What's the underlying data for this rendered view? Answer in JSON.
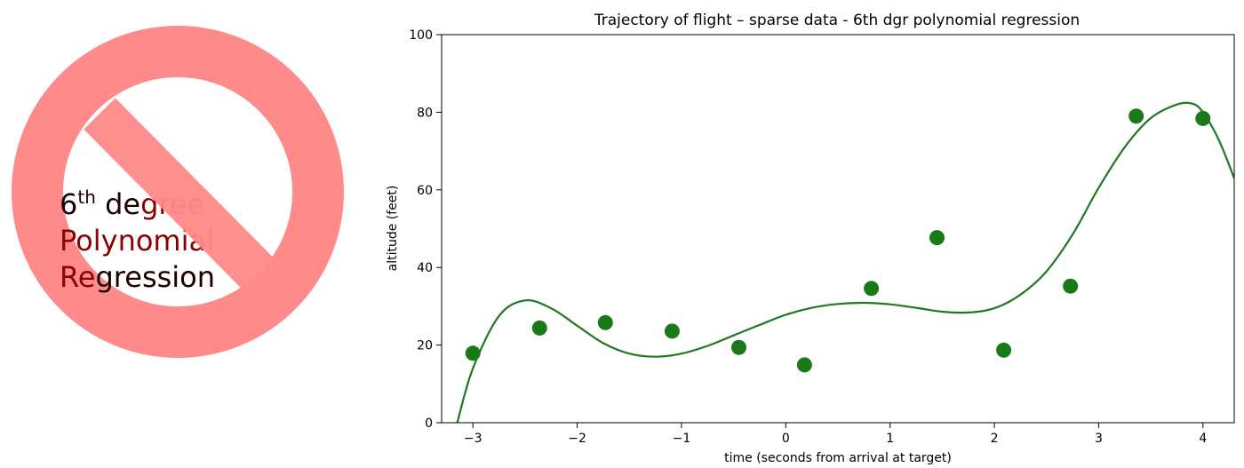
{
  "badge": {
    "icon": "prohibition-sign-icon",
    "ring_color": "#ff8a8a",
    "line1_main": "6",
    "line1_sup": "th",
    "line1_rest_a": " de",
    "line1_rest_b": "gree",
    "line2_a": "Pol",
    "line2_b": "ynomial",
    "line3_a": "Re",
    "line3_b": "gression",
    "text_dark": "#1a0000",
    "text_red": "#8b0000"
  },
  "chart_data": {
    "type": "scatter",
    "title": "Trajectory of flight  –  sparse data -  6th dgr polynomial regression",
    "xlabel": "time (seconds from arrival at target)",
    "ylabel": "altitude (feet)",
    "xlim": [
      -3.3,
      4.3
    ],
    "ylim": [
      0,
      100
    ],
    "xticks": [
      -3,
      -2,
      -1,
      0,
      1,
      2,
      3,
      4
    ],
    "xtick_labels": [
      "−3",
      "−2",
      "−1",
      "0",
      "1",
      "2",
      "3",
      "4"
    ],
    "yticks": [
      0,
      20,
      40,
      60,
      80,
      100
    ],
    "ytick_labels": [
      "0",
      "20",
      "40",
      "60",
      "80",
      "100"
    ],
    "grid": false,
    "colors": {
      "points": "#1a7a1a",
      "curve": "#217821"
    },
    "points": {
      "x": [
        -3.0,
        -2.36,
        -1.73,
        -1.09,
        -0.45,
        0.18,
        0.82,
        1.45,
        2.09,
        2.73,
        3.36,
        4.0
      ],
      "y": [
        17.9,
        24.4,
        25.8,
        23.6,
        19.4,
        14.9,
        34.6,
        47.7,
        18.7,
        35.2,
        79.0,
        78.4
      ]
    },
    "fit_curve": {
      "x": [
        -3.15,
        -3.0,
        -2.75,
        -2.5,
        -2.25,
        -2.0,
        -1.75,
        -1.5,
        -1.25,
        -1.0,
        -0.75,
        -0.5,
        -0.25,
        0.0,
        0.25,
        0.5,
        0.75,
        1.0,
        1.25,
        1.5,
        1.75,
        2.0,
        2.25,
        2.5,
        2.75,
        3.0,
        3.25,
        3.5,
        3.75,
        3.9,
        4.0,
        4.15,
        4.3
      ],
      "y": [
        0.0,
        14.0,
        27.5,
        31.5,
        29.5,
        25.0,
        20.5,
        17.8,
        17.0,
        17.8,
        19.8,
        22.5,
        25.2,
        27.8,
        29.6,
        30.6,
        30.9,
        30.5,
        29.6,
        28.6,
        28.4,
        29.5,
        33.0,
        39.0,
        48.5,
        60.5,
        71.0,
        78.5,
        82.0,
        82.2,
        80.0,
        73.0,
        63.0
      ]
    }
  }
}
